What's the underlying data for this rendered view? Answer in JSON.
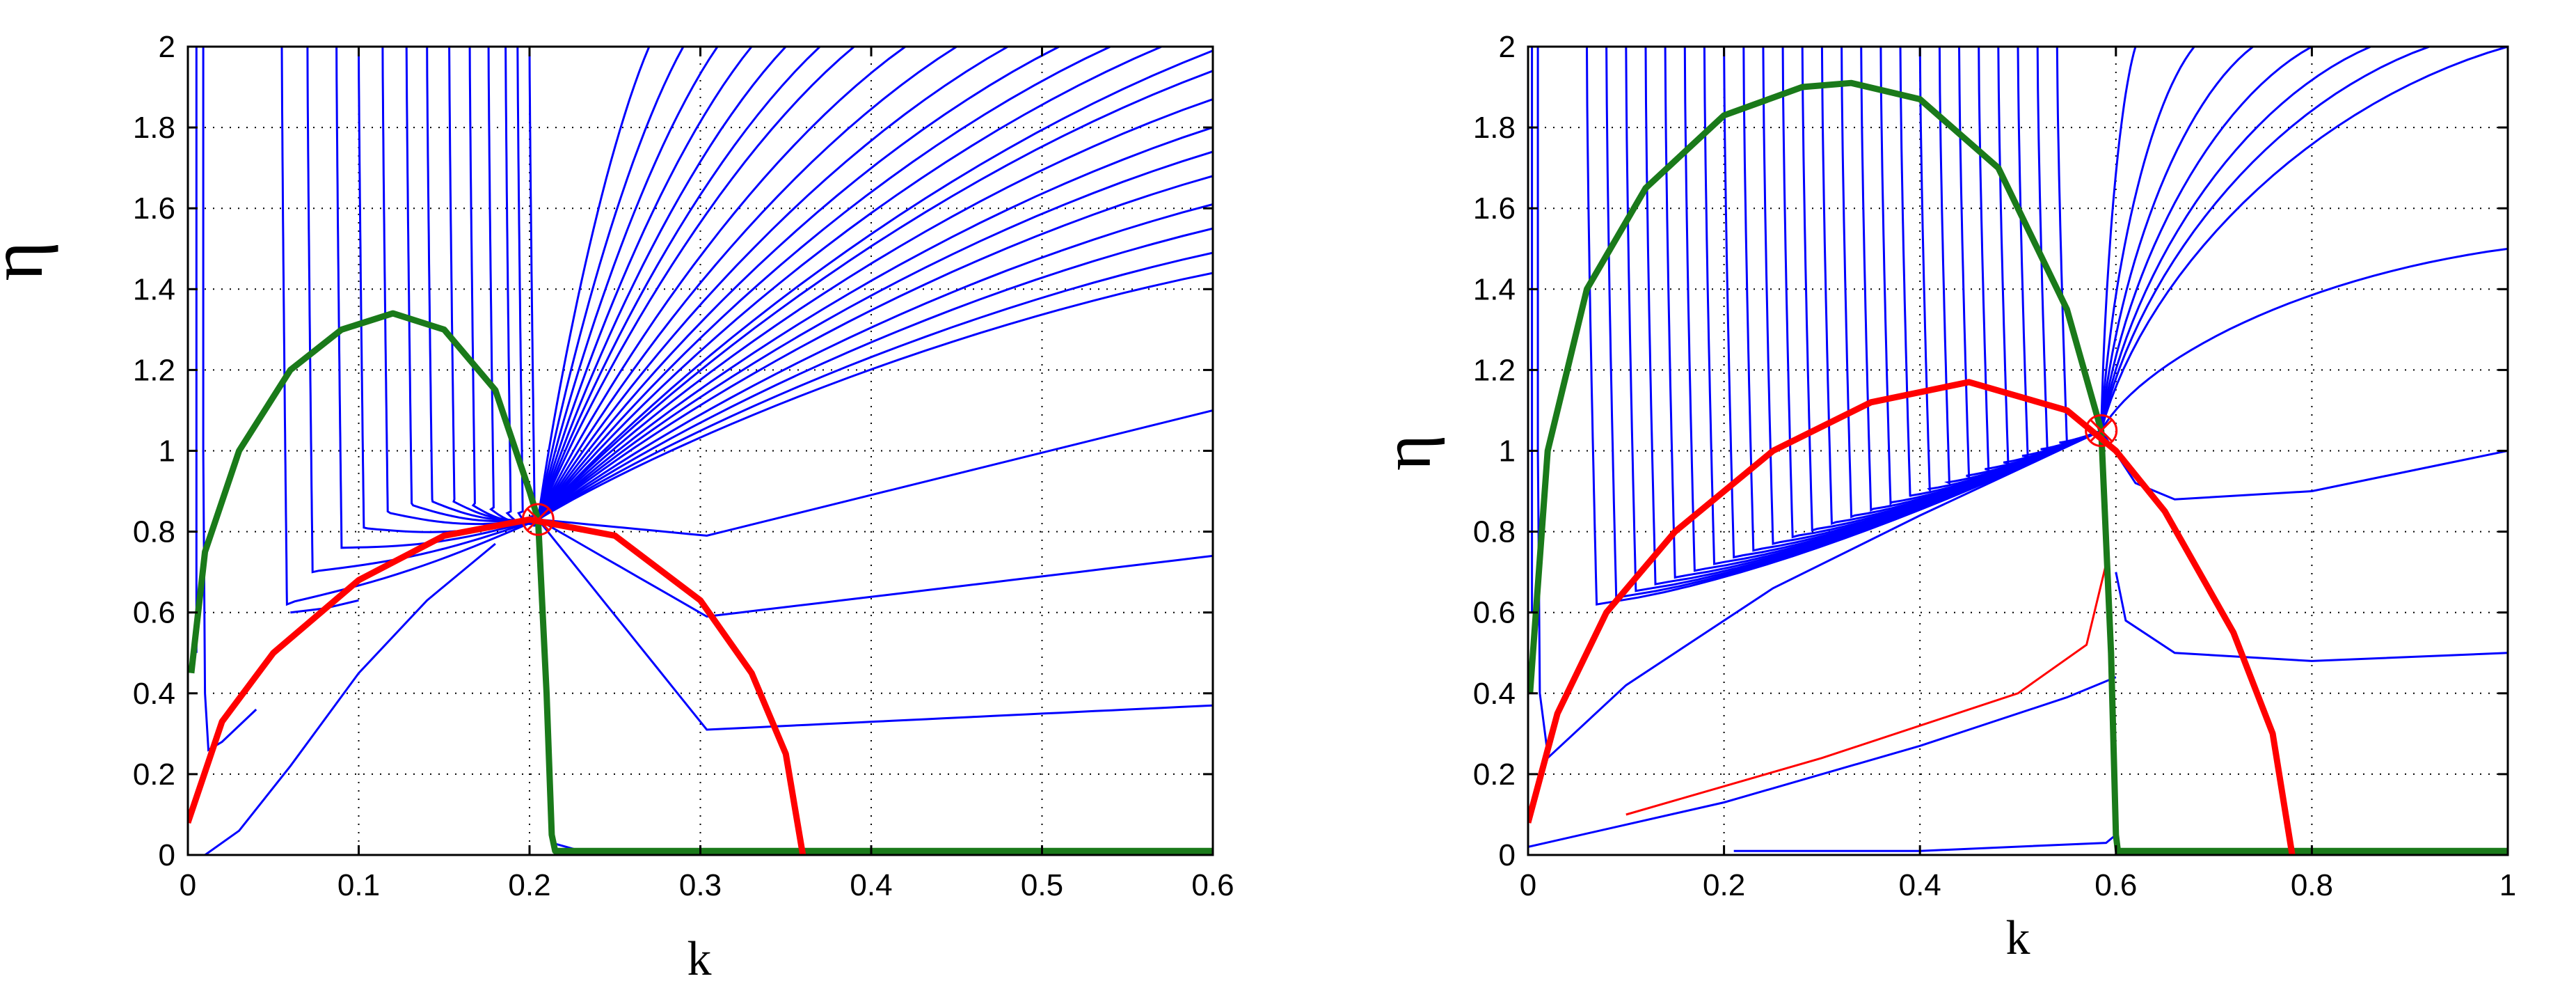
{
  "chart_data": [
    {
      "type": "line",
      "title": "",
      "xlabel": "k",
      "ylabel": "η",
      "xlim": [
        0,
        0.6
      ],
      "ylim": [
        0,
        2
      ],
      "xticks": [
        0,
        0.1,
        0.2,
        0.3,
        0.4,
        0.5,
        0.6
      ],
      "xtick_labels": [
        "0",
        "0.1",
        "0.2",
        "0.3",
        "0.4",
        "0.5",
        "0.6"
      ],
      "yticks": [
        0,
        0.2,
        0.4,
        0.6,
        0.8,
        1,
        1.2,
        1.4,
        1.6,
        1.8,
        2
      ],
      "ytick_labels": [
        "0",
        "0.2",
        "0.4",
        "0.6",
        "0.8",
        "1",
        "1.2",
        "1.4",
        "1.6",
        "1.8",
        "2"
      ],
      "grid": true,
      "colors": {
        "trajectories": "#0000ff",
        "green_curve": "#1a7a1a",
        "red_curve": "#ff0000",
        "marker": "#ff0000"
      },
      "fixed_point": [
        0.205,
        0.83
      ],
      "series": [
        {
          "color": "green",
          "x": [
            0.002,
            0.01,
            0.03,
            0.06,
            0.09,
            0.12,
            0.15,
            0.18,
            0.2,
            0.205,
            0.21,
            0.213,
            0.215,
            0.6
          ],
          "y": [
            0.45,
            0.75,
            1.0,
            1.2,
            1.3,
            1.34,
            1.3,
            1.15,
            0.9,
            0.83,
            0.4,
            0.05,
            0.01,
            0.01
          ]
        },
        {
          "color": "red",
          "x": [
            0.0,
            0.02,
            0.05,
            0.1,
            0.15,
            0.2,
            0.25,
            0.3,
            0.33,
            0.35,
            0.36
          ],
          "y": [
            0.08,
            0.33,
            0.5,
            0.68,
            0.79,
            0.83,
            0.79,
            0.63,
            0.45,
            0.25,
            0.0
          ]
        }
      ]
    },
    {
      "type": "line",
      "title": "",
      "xlabel": "k",
      "ylabel": "η",
      "xlim": [
        0,
        1
      ],
      "ylim": [
        0,
        2
      ],
      "xticks": [
        0,
        0.2,
        0.4,
        0.6,
        0.8,
        1
      ],
      "xtick_labels": [
        "0",
        "0.2",
        "0.4",
        "0.6",
        "0.8",
        "1"
      ],
      "yticks": [
        0,
        0.2,
        0.4,
        0.6,
        0.8,
        1,
        1.2,
        1.4,
        1.6,
        1.8,
        2
      ],
      "ytick_labels": [
        "0",
        "0.2",
        "0.4",
        "0.6",
        "0.8",
        "1",
        "1.2",
        "1.4",
        "1.6",
        "1.8",
        "2"
      ],
      "grid": true,
      "colors": {
        "trajectories": "#0000ff",
        "green_curve": "#1a7a1a",
        "red_curve": "#ff0000",
        "marker": "#ff0000"
      },
      "fixed_point": [
        0.585,
        1.05
      ],
      "series": [
        {
          "color": "green",
          "x": [
            0.002,
            0.02,
            0.06,
            0.12,
            0.2,
            0.28,
            0.33,
            0.4,
            0.48,
            0.55,
            0.585,
            0.595,
            0.6,
            0.602,
            1.0
          ],
          "y": [
            0.4,
            1.0,
            1.4,
            1.65,
            1.83,
            1.9,
            1.91,
            1.87,
            1.7,
            1.35,
            1.05,
            0.5,
            0.05,
            0.01,
            0.01
          ]
        },
        {
          "color": "red",
          "x": [
            0.0,
            0.03,
            0.08,
            0.15,
            0.25,
            0.35,
            0.45,
            0.55,
            0.6,
            0.65,
            0.72,
            0.76,
            0.78
          ],
          "y": [
            0.08,
            0.35,
            0.6,
            0.8,
            1.0,
            1.12,
            1.17,
            1.1,
            1.0,
            0.85,
            0.55,
            0.3,
            0.0
          ]
        }
      ]
    }
  ]
}
